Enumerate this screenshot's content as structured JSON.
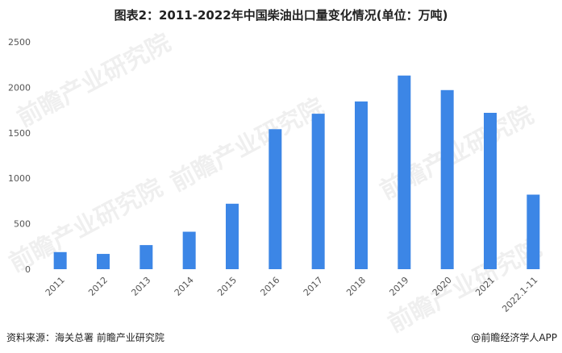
{
  "title": "图表2：2011-2022年中国柴油出口量变化情况(单位：万吨)",
  "footer": {
    "source": "资料来源：海关总署 前瞻产业研究院",
    "brand": "@前瞻经济学人APP"
  },
  "watermark": "前瞻产业研究院",
  "chart_data": {
    "type": "bar",
    "categories": [
      "2011",
      "2012",
      "2013",
      "2014",
      "2015",
      "2016",
      "2017",
      "2018",
      "2019",
      "2020",
      "2021",
      "2022.1-11"
    ],
    "values": [
      188,
      168,
      265,
      412,
      720,
      1540,
      1710,
      1845,
      2130,
      1970,
      1720,
      820
    ],
    "ylim": [
      0,
      2500
    ],
    "yticks": [
      0,
      500,
      1000,
      1500,
      2000,
      2500
    ],
    "bar_color": "#3C86E6",
    "grid": false
  }
}
